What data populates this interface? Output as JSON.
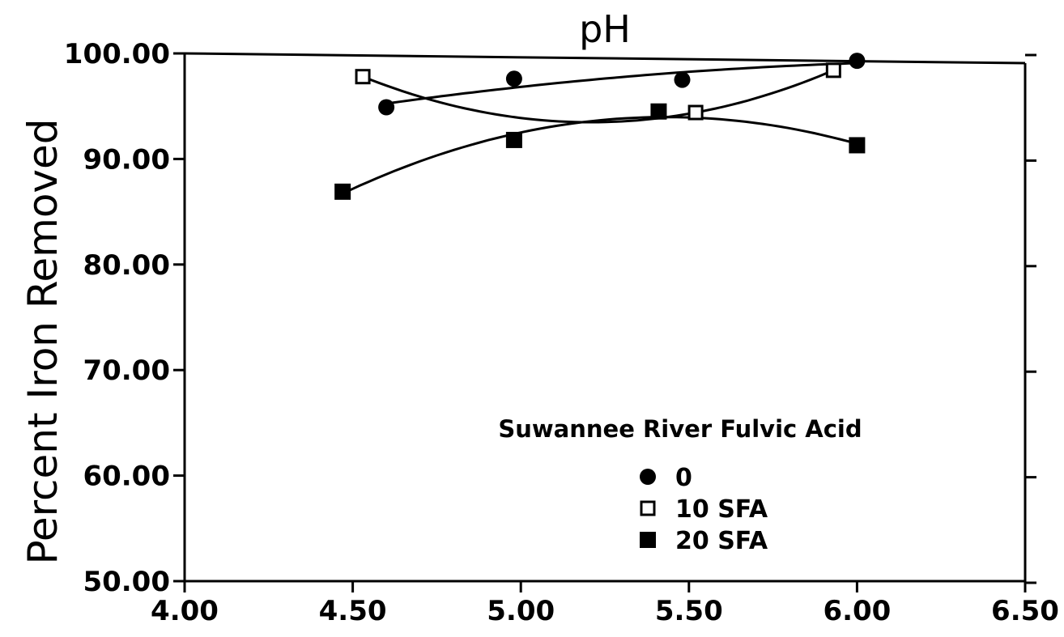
{
  "chart_data": {
    "type": "scatter",
    "title": "pH",
    "xlabel": "",
    "ylabel": "Percent Iron Removed",
    "xlim": [
      4.0,
      6.5
    ],
    "ylim": [
      50.0,
      100.0
    ],
    "x_ticks": [
      "4.00",
      "4.50",
      "5.00",
      "5.50",
      "6.00",
      "6.50"
    ],
    "y_ticks": [
      "50.00",
      "60.00",
      "70.00",
      "80.00",
      "90.00",
      "100.00"
    ],
    "grid": false,
    "legend": {
      "title": "Suwannee River Fulvic Acid",
      "position": "bottom-right"
    },
    "series": [
      {
        "name": "0",
        "marker": "filled-circle",
        "x": [
          4.6,
          4.98,
          5.48,
          6.0
        ],
        "y": [
          94.9,
          97.6,
          97.5,
          99.3
        ]
      },
      {
        "name": "10 SFA",
        "marker": "open-square",
        "x": [
          4.53,
          5.52,
          5.93
        ],
        "y": [
          97.8,
          94.4,
          98.4
        ]
      },
      {
        "name": "20 SFA",
        "marker": "filled-square",
        "x": [
          4.47,
          4.98,
          5.41,
          6.0
        ],
        "y": [
          86.9,
          91.8,
          94.5,
          91.3
        ]
      }
    ]
  }
}
